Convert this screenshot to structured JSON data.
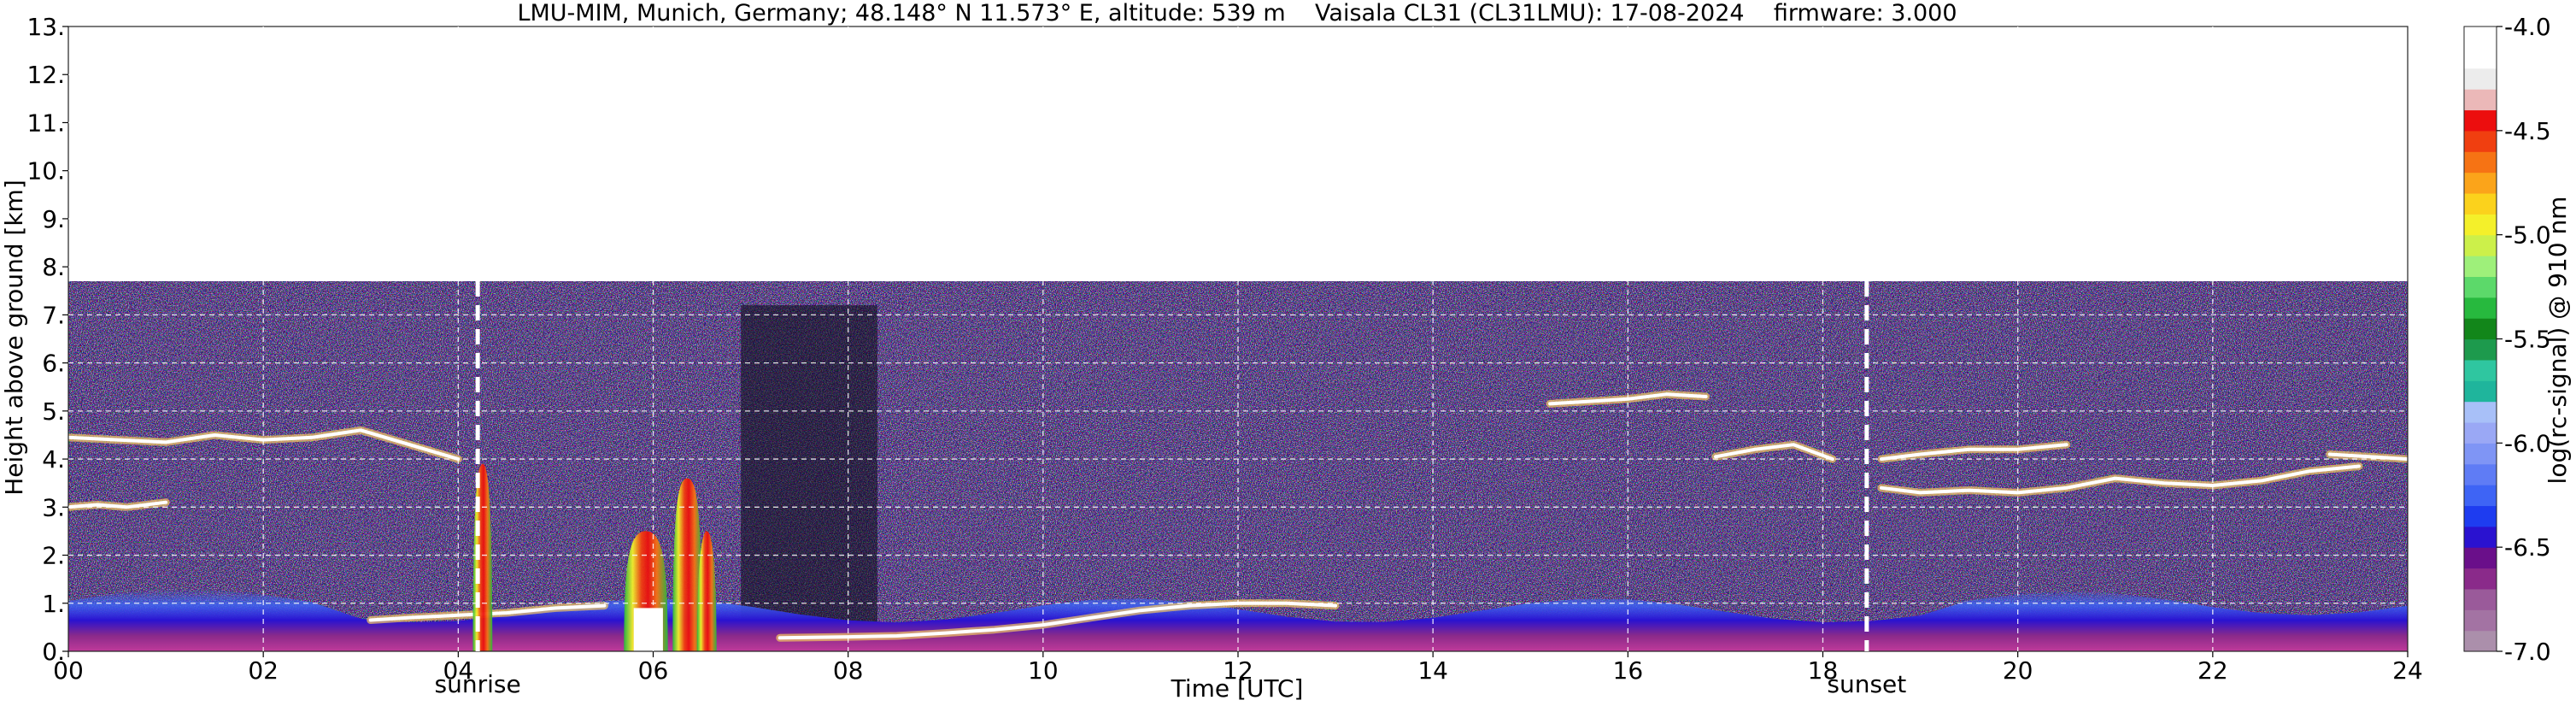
{
  "chart_data": {
    "type": "heatmap",
    "title": "LMU-MIM, Munich, Germany; 48.148° N 11.573° E, altitude: 539 m    Vaisala CL31 (CL31LMU): 17-08-2024    firmware: 3.000",
    "xlabel": "Time [UTC]",
    "ylabel": "Height above ground [km]",
    "xlim": [
      0,
      24
    ],
    "ylim": [
      0,
      13
    ],
    "x_ticks": [
      0,
      2,
      4,
      6,
      8,
      10,
      12,
      14,
      16,
      18,
      20,
      22,
      24
    ],
    "x_tick_labels": [
      "00",
      "02",
      "04",
      "06",
      "08",
      "10",
      "12",
      "14",
      "16",
      "18",
      "20",
      "22",
      "24"
    ],
    "y_ticks": [
      0,
      1,
      2,
      3,
      4,
      5,
      6,
      7,
      8,
      9,
      10,
      11,
      12,
      13
    ],
    "y_tick_labels": [
      "0.",
      "1.",
      "2.",
      "3.",
      "4.",
      "5.",
      "6.",
      "7.",
      "8.",
      "9.",
      "10.",
      "11.",
      "12.",
      "13."
    ],
    "grid": true,
    "data_top_km": 7.7,
    "colorbar": {
      "label": "log(rc-signal) @ 910 nm",
      "range": [
        -7.0,
        -4.0
      ],
      "ticks": [
        -7.0,
        -6.5,
        -6.0,
        -5.5,
        -5.0,
        -4.5,
        -4.0
      ],
      "tick_labels": [
        "-7.0",
        "-6.5",
        "-6.0",
        "-5.5",
        "-5.0",
        "-4.5",
        "-4.0"
      ],
      "colors": [
        "#ab8fab",
        "#a373a3",
        "#9a5a9a",
        "#8a2a8a",
        "#6a0f8a",
        "#2a12d0",
        "#1e3cf0",
        "#3e64f5",
        "#5f7cf5",
        "#7f95f5",
        "#9aa8f5",
        "#a8c0f8",
        "#1fb59c",
        "#2fc6a0",
        "#1d9a4d",
        "#12861a",
        "#27b93e",
        "#5cd96a",
        "#9ef07a",
        "#ccf04a",
        "#f4f02a",
        "#fbd21c",
        "#fba41a",
        "#f67314",
        "#f03f10",
        "#ec0e0e",
        "#ebb8b8",
        "#ececec",
        "#ffffff",
        "#ffffff"
      ]
    },
    "markers": [
      {
        "label": "sunrise",
        "x": 4.2
      },
      {
        "label": "sunset",
        "x": 18.45
      }
    ],
    "cloud_layers": [
      {
        "x": [
          0.0,
          0.5,
          1.0,
          1.5,
          2.0,
          2.5,
          3.0,
          3.5,
          4.0
        ],
        "y": [
          4.45,
          4.4,
          4.35,
          4.5,
          4.4,
          4.45,
          4.6,
          4.3,
          4.0
        ]
      },
      {
        "x": [
          0.0,
          0.3,
          0.6,
          1.0
        ],
        "y": [
          3.0,
          3.05,
          3.0,
          3.1
        ]
      },
      {
        "x": [
          3.1,
          3.5,
          4.0,
          4.5,
          5.0,
          5.5
        ],
        "y": [
          0.65,
          0.7,
          0.75,
          0.8,
          0.9,
          0.95
        ]
      },
      {
        "x": [
          7.3,
          8.0,
          8.5,
          9.0,
          9.5,
          10.0,
          10.5,
          11.0,
          11.5,
          12.0,
          12.5,
          13.0
        ],
        "y": [
          0.28,
          0.3,
          0.32,
          0.38,
          0.45,
          0.55,
          0.7,
          0.85,
          0.95,
          1.0,
          1.0,
          0.95
        ]
      },
      {
        "x": [
          15.2,
          15.6,
          16.0,
          16.4,
          16.8
        ],
        "y": [
          5.15,
          5.2,
          5.25,
          5.35,
          5.3
        ]
      },
      {
        "x": [
          16.9,
          17.3,
          17.7,
          18.1
        ],
        "y": [
          4.05,
          4.2,
          4.3,
          4.0
        ]
      },
      {
        "x": [
          18.6,
          19.0,
          19.5,
          20.0,
          20.5
        ],
        "y": [
          4.0,
          4.1,
          4.2,
          4.2,
          4.3
        ]
      },
      {
        "x": [
          18.6,
          19.0,
          19.5,
          20.0,
          20.5,
          21.0,
          21.5,
          22.0,
          22.5,
          23.0,
          23.5
        ],
        "y": [
          3.4,
          3.3,
          3.35,
          3.3,
          3.4,
          3.6,
          3.5,
          3.45,
          3.55,
          3.75,
          3.85
        ]
      },
      {
        "x": [
          23.2,
          23.6,
          24.0
        ],
        "y": [
          4.1,
          4.05,
          4.0
        ]
      }
    ],
    "convective_plumes": [
      {
        "x": [
          4.15,
          4.35
        ],
        "top": 3.9
      },
      {
        "x": [
          5.7,
          6.15
        ],
        "top": 2.5
      },
      {
        "x": [
          6.2,
          6.5
        ],
        "top": 3.6
      },
      {
        "x": [
          6.45,
          6.65
        ],
        "top": 2.5
      }
    ]
  }
}
